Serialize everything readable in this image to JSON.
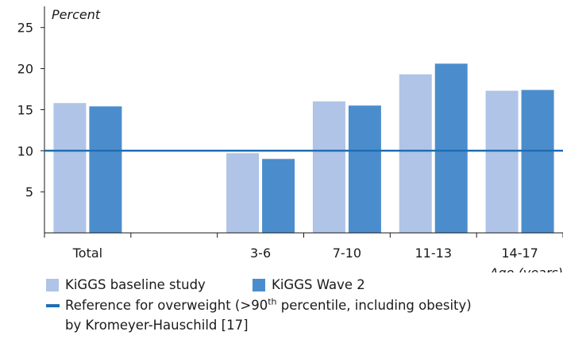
{
  "chart_data": {
    "type": "bar",
    "y_unit_label": "Percent",
    "x_unit_label": "Age (years)",
    "categories": [
      "Total",
      "",
      "3-6",
      "7-10",
      "11-13",
      "14-17"
    ],
    "series": [
      {
        "name": "KiGGS baseline study",
        "color": "#afc4e6",
        "values": [
          15.8,
          null,
          9.7,
          16.0,
          19.3,
          17.3
        ]
      },
      {
        "name": "KiGGS Wave 2",
        "color": "#4b8dcc",
        "values": [
          15.4,
          null,
          9.0,
          15.5,
          20.6,
          17.4
        ]
      }
    ],
    "reference_line": {
      "value": 10,
      "color": "#1f6fb4"
    },
    "ylim": [
      0,
      27
    ],
    "yticks": [
      5,
      10,
      15,
      20,
      25
    ],
    "grid": false
  },
  "legend": {
    "baseline": "KiGGS baseline study",
    "wave2": "KiGGS Wave 2",
    "reference_pre": "Reference for overweight (>90",
    "reference_sup": "th",
    "reference_post": " percentile, including obesity)",
    "reference_line2": "by Kromeyer-Hauschild [17]"
  }
}
